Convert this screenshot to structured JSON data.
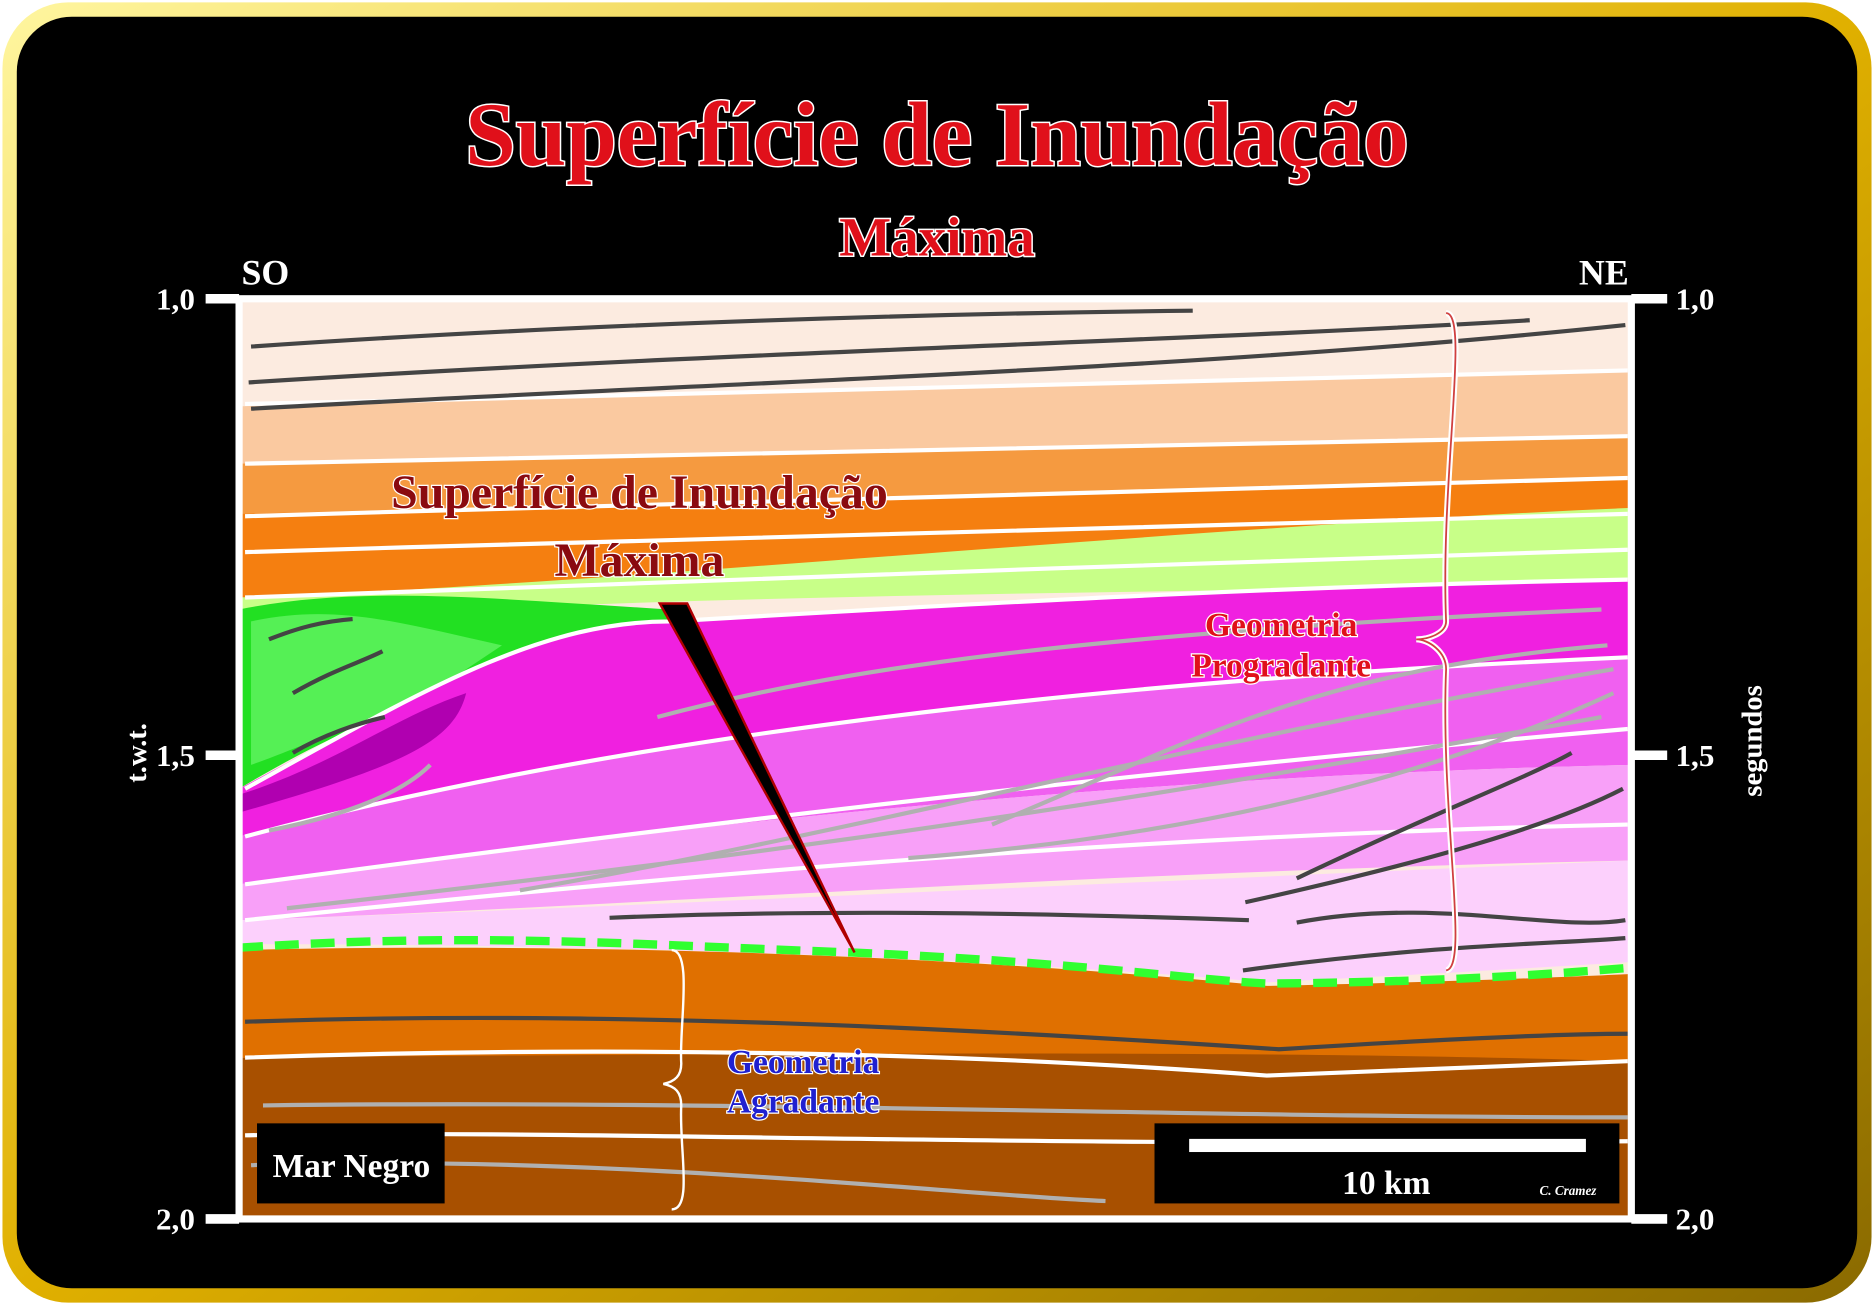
{
  "title": "Superfície de Inundação",
  "subtitle": "Máxima",
  "orientation": {
    "left": "SO",
    "right": "NE"
  },
  "axis": {
    "ticks": [
      "1,0",
      "1,5",
      "2,0"
    ],
    "left_label": "t.w.t.",
    "right_label": "segundos"
  },
  "annotations": {
    "surface": [
      "Superfície de Inundação",
      "Máxima"
    ],
    "prograding": [
      "Geometria",
      "Progradante"
    ],
    "aggrading": [
      "Geometria",
      "Agradante"
    ]
  },
  "location": "Mar Negro",
  "scale_bar": "10 km",
  "credit": "C. Cramez"
}
